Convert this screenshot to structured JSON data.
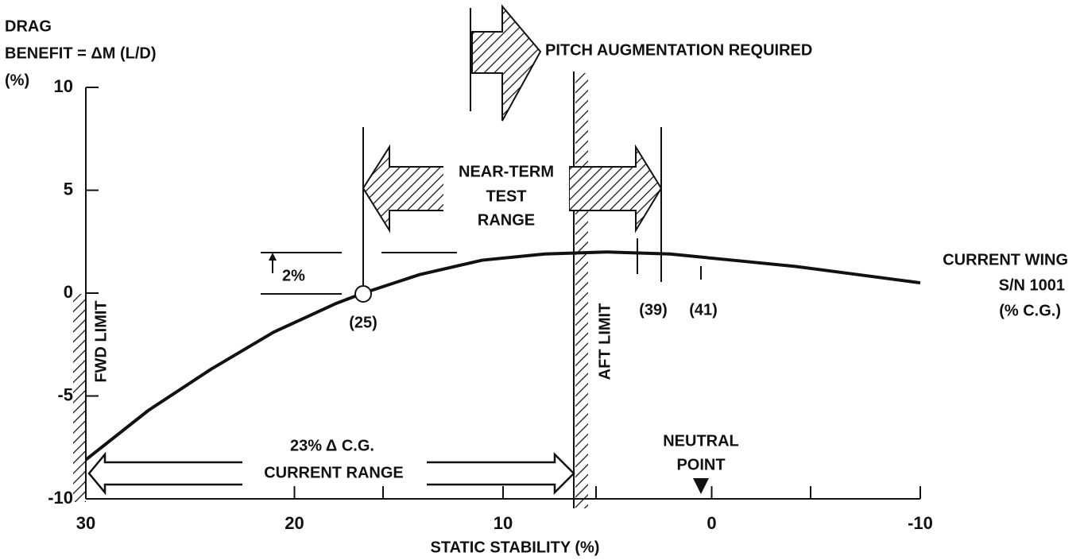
{
  "chart_data": {
    "type": "line",
    "ylabel": [
      "DRAG",
      "BENEFIT = ΔM (L/D)",
      "(%)"
    ],
    "xlabel": "STATIC STABILITY (%)",
    "x": [
      30,
      27,
      24,
      21,
      18,
      16.7,
      14,
      11,
      8,
      5,
      2,
      -1,
      -4,
      -7,
      -10
    ],
    "series": [
      {
        "color": "#111111",
        "values": [
          -8.1,
          -5.7,
          -3.7,
          -1.9,
          -0.5,
          0,
          0.9,
          1.6,
          1.9,
          2.0,
          1.9,
          1.6,
          1.3,
          0.9,
          0.5
        ]
      }
    ],
    "xlim": [
      30,
      -10
    ],
    "ylim": [
      -10,
      10
    ],
    "xticks": [
      30,
      20,
      10,
      0,
      -10
    ],
    "yticks": [
      10,
      5,
      0,
      -5,
      -10
    ],
    "annotations": [
      "PITCH AUGMENTATION REQUIRED",
      "NEAR-TERM",
      "TEST",
      "RANGE",
      "2%",
      "(25)",
      "(39)",
      "(41)",
      "CURRENT WING",
      "S/N 1001",
      "(% C.G.)",
      "FWD LIMIT",
      "AFT LIMIT",
      "NEUTRAL",
      "POINT",
      "23% Δ C.G.",
      "CURRENT RANGE"
    ]
  }
}
